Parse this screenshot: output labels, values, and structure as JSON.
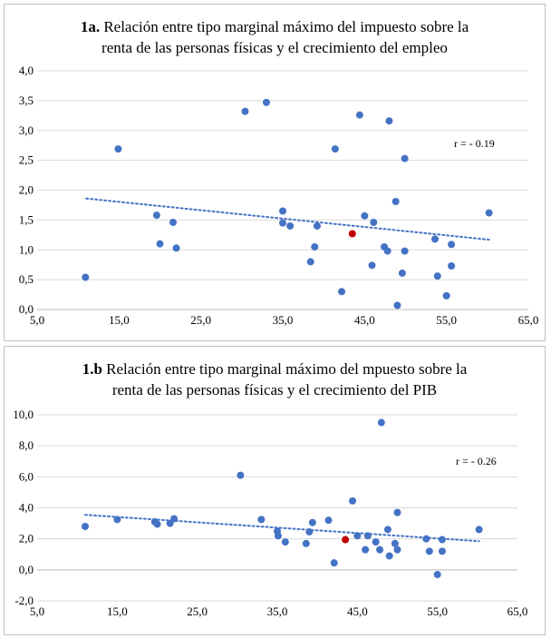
{
  "colors": {
    "point": "#4472c4",
    "highlight": "#c00000",
    "trend": "#4472c4",
    "grid": "#d9d9d9",
    "axis": "#bfbfbf"
  },
  "chart_data": [
    {
      "type": "scatter",
      "title_bold": "1a.",
      "title_line1": " Relación entre tipo marginal máximo del impuesto sobre la",
      "title_line2": "renta de las personas físicas y el crecimiento del empleo",
      "xlabel": "",
      "ylabel": "",
      "xlim": [
        5,
        65
      ],
      "ylim": [
        0,
        4
      ],
      "xticks": [
        "5,0",
        "15,0",
        "25,0",
        "35,0",
        "45,0",
        "55,0",
        "65,0"
      ],
      "yticks": [
        "0,0",
        "0,5",
        "1,0",
        "1,5",
        "2,0",
        "2,5",
        "3,0",
        "3,5",
        "4,0"
      ],
      "grid": "horizontal",
      "annotation": "r = - 0.19",
      "trendline": {
        "x": [
          11,
          60.2
        ],
        "y": [
          1.86,
          1.17
        ]
      },
      "highlight_point": {
        "x": 43.5,
        "y": 1.27
      },
      "points": [
        {
          "x": 10.9,
          "y": 0.54
        },
        {
          "x": 14.9,
          "y": 2.69
        },
        {
          "x": 19.6,
          "y": 1.58
        },
        {
          "x": 20.0,
          "y": 1.1
        },
        {
          "x": 21.6,
          "y": 1.46
        },
        {
          "x": 22.0,
          "y": 1.03
        },
        {
          "x": 30.4,
          "y": 3.32
        },
        {
          "x": 33.0,
          "y": 3.47
        },
        {
          "x": 35.0,
          "y": 1.65
        },
        {
          "x": 35.0,
          "y": 1.45
        },
        {
          "x": 35.9,
          "y": 1.4
        },
        {
          "x": 38.4,
          "y": 0.8
        },
        {
          "x": 38.9,
          "y": 1.05
        },
        {
          "x": 39.2,
          "y": 1.4
        },
        {
          "x": 41.4,
          "y": 2.69
        },
        {
          "x": 42.2,
          "y": 0.3
        },
        {
          "x": 44.4,
          "y": 3.26
        },
        {
          "x": 45.0,
          "y": 1.57
        },
        {
          "x": 45.9,
          "y": 0.74
        },
        {
          "x": 46.1,
          "y": 1.46
        },
        {
          "x": 47.4,
          "y": 1.05
        },
        {
          "x": 47.8,
          "y": 0.98
        },
        {
          "x": 48.0,
          "y": 3.16
        },
        {
          "x": 48.8,
          "y": 1.81
        },
        {
          "x": 49.0,
          "y": 0.07
        },
        {
          "x": 49.6,
          "y": 0.61
        },
        {
          "x": 49.9,
          "y": 2.53
        },
        {
          "x": 49.9,
          "y": 0.98
        },
        {
          "x": 53.6,
          "y": 1.18
        },
        {
          "x": 53.9,
          "y": 0.56
        },
        {
          "x": 55.0,
          "y": 0.23
        },
        {
          "x": 55.6,
          "y": 1.09
        },
        {
          "x": 55.6,
          "y": 0.73
        },
        {
          "x": 60.2,
          "y": 1.62
        }
      ]
    },
    {
      "type": "scatter",
      "title_bold": "1.b",
      "title_line1": " Relación entre tipo marginal máximo del mpuesto sobre la",
      "title_line2": "renta de las personas físicas y el crecimiento del PIB",
      "xlabel": "",
      "ylabel": "",
      "xlim": [
        5,
        65
      ],
      "ylim": [
        -2,
        10
      ],
      "xticks": [
        "5,0",
        "15,0",
        "25,0",
        "35,0",
        "45,0",
        "55,0",
        "65,0"
      ],
      "yticks": [
        "-2,0",
        "0,0",
        "2,0",
        "4,0",
        "6,0",
        "8,0",
        "10,0"
      ],
      "grid": "horizontal",
      "annotation": "r = - 0.26",
      "trendline": {
        "x": [
          11,
          60.2
        ],
        "y": [
          3.55,
          1.85
        ]
      },
      "highlight_point": {
        "x": 43.5,
        "y": 1.95
      },
      "points": [
        {
          "x": 11.0,
          "y": 2.8
        },
        {
          "x": 15.0,
          "y": 3.25
        },
        {
          "x": 19.7,
          "y": 3.1
        },
        {
          "x": 20.0,
          "y": 2.95
        },
        {
          "x": 21.6,
          "y": 3.0
        },
        {
          "x": 22.1,
          "y": 3.3
        },
        {
          "x": 30.4,
          "y": 6.1
        },
        {
          "x": 33.0,
          "y": 3.25
        },
        {
          "x": 35.0,
          "y": 2.5
        },
        {
          "x": 35.1,
          "y": 2.2
        },
        {
          "x": 36.0,
          "y": 1.8
        },
        {
          "x": 38.6,
          "y": 1.7
        },
        {
          "x": 39.0,
          "y": 2.45
        },
        {
          "x": 39.4,
          "y": 3.05
        },
        {
          "x": 41.4,
          "y": 3.2
        },
        {
          "x": 42.1,
          "y": 0.45
        },
        {
          "x": 44.4,
          "y": 4.45
        },
        {
          "x": 45.0,
          "y": 2.2
        },
        {
          "x": 46.0,
          "y": 1.3
        },
        {
          "x": 46.3,
          "y": 2.2
        },
        {
          "x": 47.3,
          "y": 1.8
        },
        {
          "x": 47.8,
          "y": 1.3
        },
        {
          "x": 48.0,
          "y": 9.5
        },
        {
          "x": 48.8,
          "y": 2.6
        },
        {
          "x": 49.0,
          "y": 0.9
        },
        {
          "x": 49.7,
          "y": 1.7
        },
        {
          "x": 50.0,
          "y": 3.7
        },
        {
          "x": 50.0,
          "y": 1.3
        },
        {
          "x": 53.6,
          "y": 2.0
        },
        {
          "x": 54.0,
          "y": 1.2
        },
        {
          "x": 55.0,
          "y": -0.3
        },
        {
          "x": 55.6,
          "y": 1.95
        },
        {
          "x": 55.6,
          "y": 1.2
        },
        {
          "x": 60.2,
          "y": 2.6
        }
      ]
    }
  ]
}
